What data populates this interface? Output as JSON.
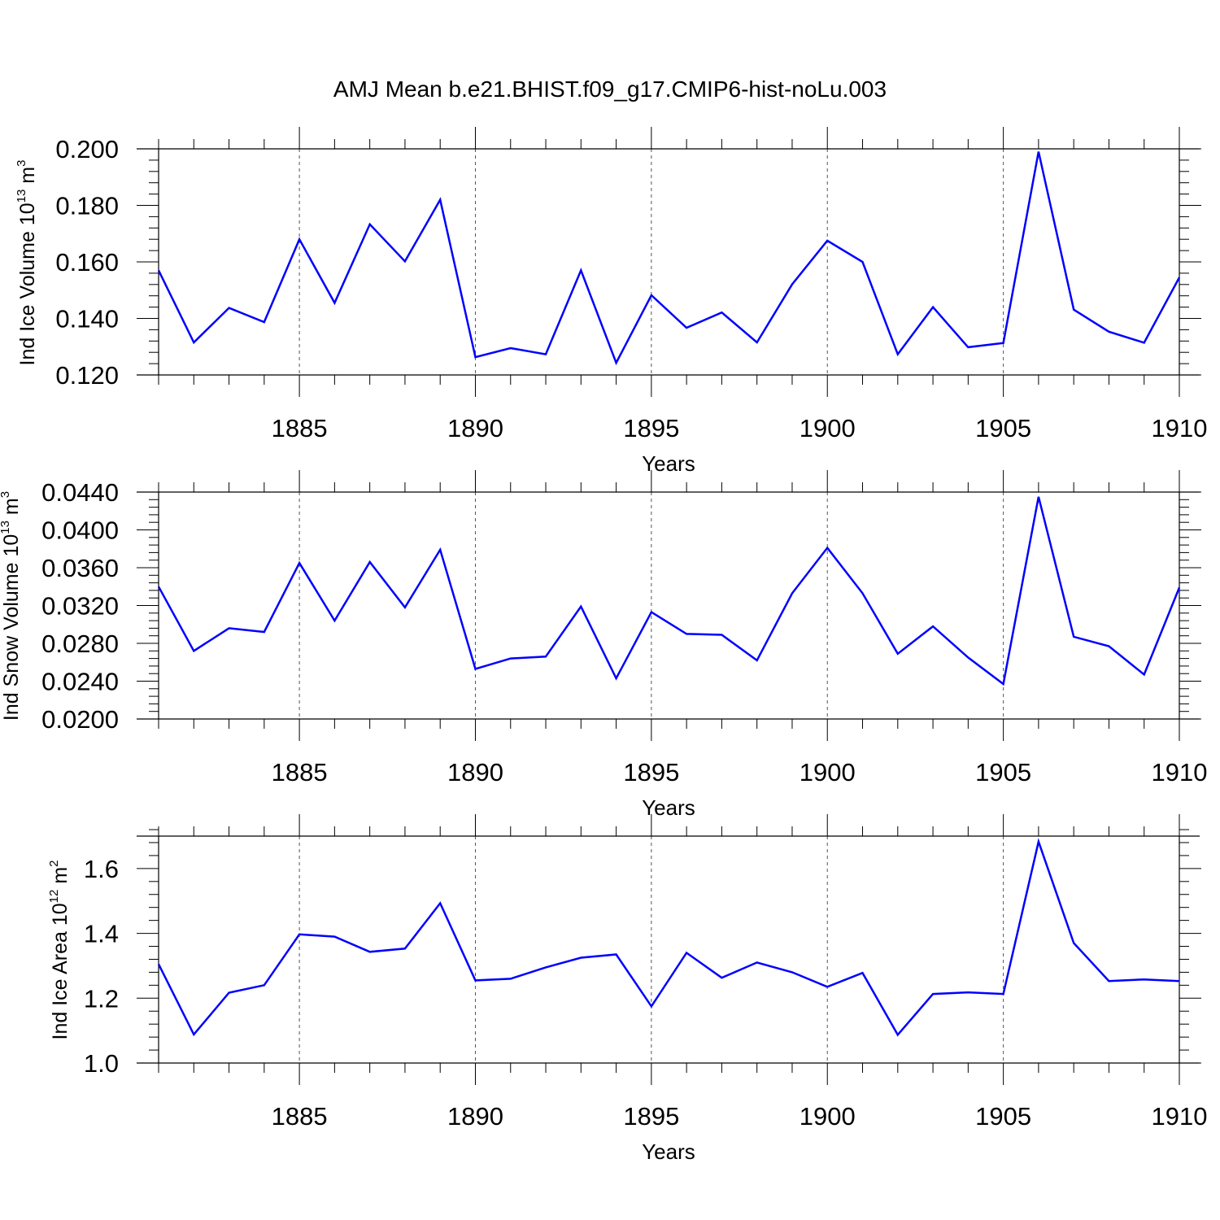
{
  "chart_data": {
    "title": "AMJ Mean b.e21.BHIST.f09_g17.CMIP6-hist-noLu.003",
    "type": "line",
    "x": [
      1881,
      1882,
      1883,
      1884,
      1885,
      1886,
      1887,
      1888,
      1889,
      1890,
      1891,
      1892,
      1893,
      1894,
      1895,
      1896,
      1897,
      1898,
      1899,
      1900,
      1901,
      1902,
      1903,
      1904,
      1905,
      1906,
      1907,
      1908,
      1909,
      1910
    ],
    "xlim": [
      1881,
      1910
    ],
    "x_ticks": [
      1885,
      1890,
      1895,
      1900,
      1905,
      1910
    ],
    "x_tick_labels": [
      "1885",
      "1890",
      "1895",
      "1900",
      "1905",
      "1910"
    ],
    "line_color": "#0000ff",
    "grid": "dashed vertical lines at major x ticks",
    "panels": [
      {
        "id": "ice-volume",
        "ylabel_main": "Ind Ice Volume 10",
        "ylabel_sup1": "13",
        "ylabel_mid": " m",
        "ylabel_sup2": "3",
        "xlabel": "Years",
        "ylim": [
          0.12,
          0.2
        ],
        "y_ticks": [
          0.12,
          0.14,
          0.16,
          0.18,
          0.2
        ],
        "y_tick_labels": [
          "0.120",
          "0.140",
          "0.160",
          "0.180",
          "0.200"
        ],
        "values": [
          0.157,
          0.1315,
          0.1437,
          0.1387,
          0.168,
          0.1455,
          0.1733,
          0.1602,
          0.182,
          0.1263,
          0.1295,
          0.1273,
          0.157,
          0.1243,
          0.1482,
          0.1367,
          0.1421,
          0.1315,
          0.1521,
          0.1675,
          0.16,
          0.1273,
          0.144,
          0.1298,
          0.1313,
          0.199,
          0.1431,
          0.1353,
          0.1314,
          0.1545
        ]
      },
      {
        "id": "snow-volume",
        "ylabel_main": "Ind Snow Volume 10",
        "ylabel_sup1": "13",
        "ylabel_mid": " m",
        "ylabel_sup2": "3",
        "xlabel": "Years",
        "ylim": [
          0.02,
          0.044
        ],
        "y_ticks": [
          0.02,
          0.024,
          0.028,
          0.032,
          0.036,
          0.04,
          0.044
        ],
        "y_tick_labels": [
          "0.0200",
          "0.0240",
          "0.0280",
          "0.0320",
          "0.0360",
          "0.0400",
          "0.0440"
        ],
        "values": [
          0.034,
          0.0272,
          0.0296,
          0.0292,
          0.0365,
          0.0304,
          0.0366,
          0.0318,
          0.0379,
          0.0253,
          0.0264,
          0.0266,
          0.0319,
          0.0243,
          0.0313,
          0.029,
          0.0289,
          0.0262,
          0.0333,
          0.0381,
          0.0333,
          0.0269,
          0.0298,
          0.0265,
          0.0237,
          0.0435,
          0.0287,
          0.0277,
          0.0247,
          0.0339
        ]
      },
      {
        "id": "ice-area",
        "ylabel_main": "Ind Ice Area 10",
        "ylabel_sup1": "12",
        "ylabel_mid": " m",
        "ylabel_sup2": "2",
        "xlabel": "Years",
        "ylim": [
          1.0,
          1.7
        ],
        "y_ticks": [
          1.0,
          1.2,
          1.4,
          1.6
        ],
        "y_tick_labels": [
          "1.0",
          "1.2",
          "1.4",
          "1.6"
        ],
        "values": [
          1.305,
          1.088,
          1.217,
          1.24,
          1.397,
          1.39,
          1.343,
          1.353,
          1.493,
          1.255,
          1.26,
          1.295,
          1.325,
          1.335,
          1.175,
          1.34,
          1.263,
          1.31,
          1.28,
          1.235,
          1.278,
          1.087,
          1.213,
          1.218,
          1.213,
          1.683,
          1.37,
          1.253,
          1.258,
          1.253
        ]
      }
    ]
  }
}
